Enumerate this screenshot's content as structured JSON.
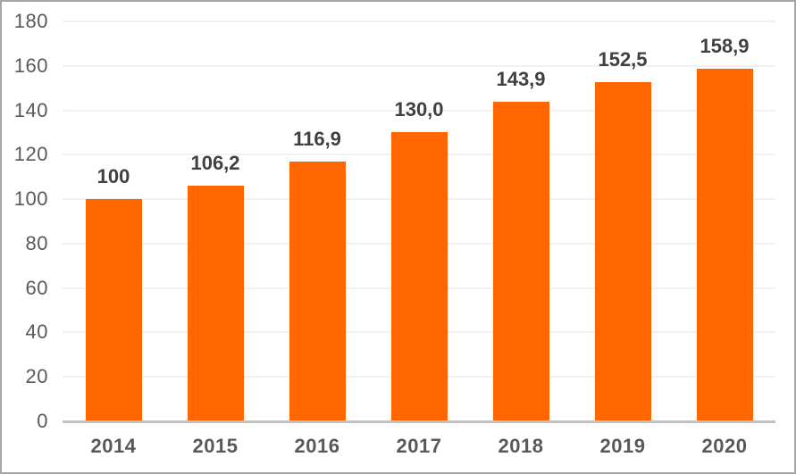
{
  "chart_data": {
    "type": "bar",
    "title": "",
    "xlabel": "",
    "ylabel": "",
    "categories": [
      "2014",
      "2015",
      "2016",
      "2017",
      "2018",
      "2019",
      "2020"
    ],
    "values": [
      100,
      106.2,
      116.9,
      130.0,
      143.9,
      152.5,
      158.9
    ],
    "value_labels": [
      "100",
      "106,2",
      "116,9",
      "130,0",
      "143,9",
      "152,5",
      "158,9"
    ],
    "y_ticks": [
      0,
      20,
      40,
      60,
      80,
      100,
      120,
      140,
      160,
      180
    ],
    "ylim": [
      0,
      180
    ],
    "grid": true,
    "legend_position": "none",
    "colors": {
      "bar": "#ff6600",
      "value_label": "#404040",
      "tick_label": "#595959",
      "gridline": "#f1f1f1",
      "axis_line": "#c2c2c2",
      "frame_border": "#a6a6a6",
      "background": "#ffffff"
    }
  }
}
